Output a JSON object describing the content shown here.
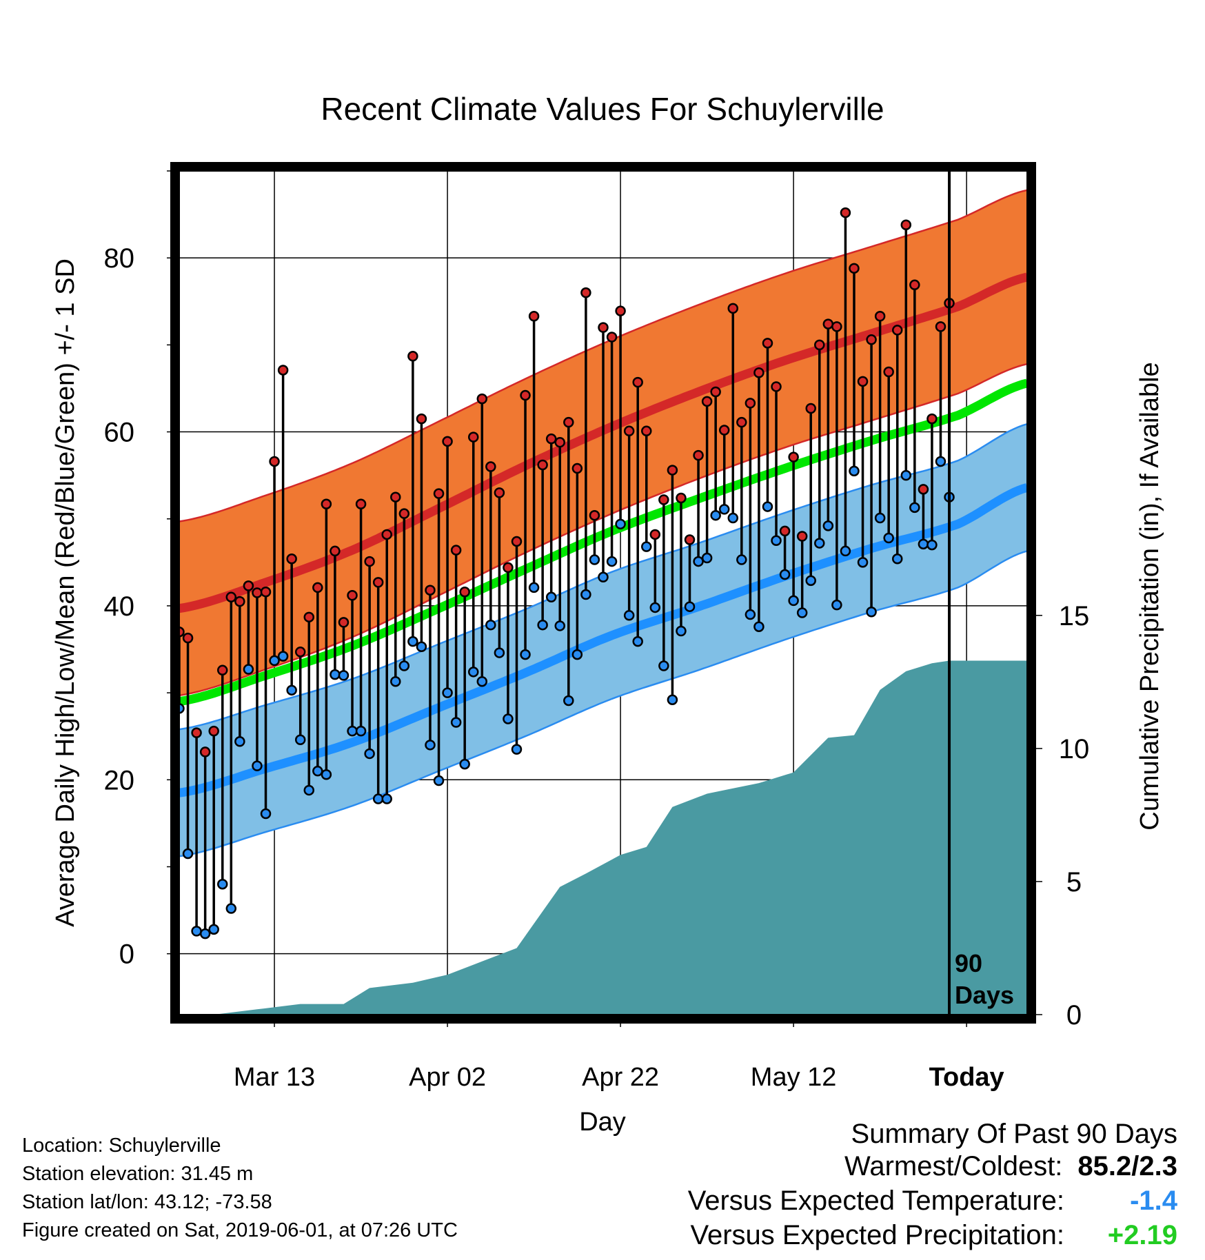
{
  "chart_data": {
    "type": "line",
    "title": "Recent Climate Values For Schuylerville",
    "xlabel": "Day",
    "ylabel": "Average Daily High/Low/Mean (Red/Blue/Green) +/- 1 SD",
    "y2label": "Cumulative Precipitation (in), If Available",
    "x_tick_labels": [
      "Mar 13",
      "Apr 02",
      "Apr 22",
      "May 12",
      "Today"
    ],
    "y_ticks": [
      0,
      20,
      40,
      60,
      80
    ],
    "y2_ticks": [
      0,
      5,
      10,
      15
    ],
    "ylim": [
      -7,
      90
    ],
    "y2lim": [
      0,
      31.7
    ],
    "grid": true,
    "today_marker_label": [
      "90",
      "Days"
    ],
    "colors": {
      "high_band": "#f07832",
      "high_band_edge": "#d42828",
      "high_mean": "#d42828",
      "low_band": "#80bfe6",
      "low_band_edge": "#2a8cf0",
      "low_mean": "#1e90ff",
      "mean": "#00e600",
      "precip": "#4a9aa2",
      "high_marker": "#d42828",
      "low_marker": "#2a8cf0"
    },
    "normals": {
      "days": [
        -89,
        -79,
        -69,
        -59,
        -49,
        -39,
        -29,
        -19,
        -9,
        1,
        9
      ],
      "normal_high": [
        39.7,
        42.7,
        46.4,
        51.2,
        56.1,
        60.6,
        64.6,
        68.2,
        71.3,
        74.4,
        77.8
      ],
      "normal_low": [
        18.5,
        21.3,
        24.3,
        28.3,
        32.3,
        36.6,
        39.9,
        43.4,
        46.6,
        49.4,
        53.6
      ],
      "normal_mean": [
        29.0,
        32.0,
        35.4,
        39.7,
        44.2,
        48.6,
        52.3,
        55.8,
        59.0,
        61.9,
        65.6
      ],
      "high_sd": 10.0,
      "low_sd": 7.3
    },
    "series": [
      {
        "name": "High",
        "days": [
          -89,
          -88,
          -87,
          -86,
          -85,
          -84,
          -83,
          -82,
          -81,
          -80,
          -79,
          -78,
          -77,
          -76,
          -75,
          -74,
          -73,
          -72,
          -71,
          -70,
          -69,
          -68,
          -67,
          -66,
          -65,
          -64,
          -63,
          -62,
          -61,
          -60,
          -59,
          -58,
          -57,
          -56,
          -55,
          -54,
          -53,
          -52,
          -51,
          -50,
          -49,
          -48,
          -47,
          -46,
          -45,
          -44,
          -43,
          -42,
          -41,
          -40,
          -39,
          -38,
          -37,
          -36,
          -35,
          -34,
          -33,
          -32,
          -31,
          -30,
          -29,
          -28,
          -27,
          -26,
          -25,
          -24,
          -23,
          -22,
          -21,
          -20,
          -19,
          -18,
          -17,
          -16,
          -15,
          -14,
          -13,
          -12,
          -11,
          -10,
          -9,
          -8,
          -7,
          -6,
          -5,
          -4,
          -3,
          -2,
          -1,
          0
        ],
        "values": [
          37.0,
          36.3,
          25.4,
          23.2,
          25.6,
          32.6,
          41.0,
          40.5,
          42.3,
          41.5,
          41.6,
          56.6,
          67.1,
          45.4,
          34.7,
          38.7,
          42.1,
          51.7,
          46.3,
          38.1,
          41.2,
          51.7,
          45.1,
          42.7,
          48.2,
          52.5,
          50.6,
          68.7,
          61.5,
          41.8,
          52.9,
          58.9,
          46.4,
          41.6,
          59.4,
          63.8,
          56.0,
          53.0,
          44.4,
          47.4,
          64.2,
          73.3,
          56.2,
          59.2,
          58.8,
          61.1,
          55.8,
          76.0,
          50.4,
          72.0,
          70.9,
          73.9,
          60.1,
          65.7,
          60.1,
          48.2,
          52.2,
          55.6,
          52.4,
          47.6,
          57.3,
          63.5,
          64.6,
          60.2,
          74.2,
          61.1,
          63.3,
          66.8,
          70.2,
          65.2,
          48.6,
          57.1,
          48.0,
          62.7,
          70.0,
          72.4,
          72.1,
          85.2,
          78.8,
          65.8,
          70.6,
          73.3,
          66.9,
          71.7,
          83.8,
          76.9,
          53.4,
          61.5,
          72.1,
          74.8
        ]
      },
      {
        "name": "Low",
        "days": [
          -89,
          -88,
          -87,
          -86,
          -85,
          -84,
          -83,
          -82,
          -81,
          -80,
          -79,
          -78,
          -77,
          -76,
          -75,
          -74,
          -73,
          -72,
          -71,
          -70,
          -69,
          -68,
          -67,
          -66,
          -65,
          -64,
          -63,
          -62,
          -61,
          -60,
          -59,
          -58,
          -57,
          -56,
          -55,
          -54,
          -53,
          -52,
          -51,
          -50,
          -49,
          -48,
          -47,
          -46,
          -45,
          -44,
          -43,
          -42,
          -41,
          -40,
          -39,
          -38,
          -37,
          -36,
          -35,
          -34,
          -33,
          -32,
          -31,
          -30,
          -29,
          -28,
          -27,
          -26,
          -25,
          -24,
          -23,
          -22,
          -21,
          -20,
          -19,
          -18,
          -17,
          -16,
          -15,
          -14,
          -13,
          -12,
          -11,
          -10,
          -9,
          -8,
          -7,
          -6,
          -5,
          -4,
          -3,
          -2,
          -1,
          0
        ],
        "values": [
          28.2,
          11.5,
          2.6,
          2.3,
          2.8,
          8.0,
          5.2,
          24.4,
          32.7,
          21.6,
          16.1,
          33.7,
          34.2,
          30.3,
          24.6,
          18.8,
          21.0,
          20.6,
          32.1,
          32.0,
          25.6,
          25.6,
          23.0,
          17.8,
          17.8,
          31.3,
          33.1,
          35.9,
          35.3,
          24.0,
          19.9,
          30.0,
          26.6,
          21.8,
          32.4,
          31.3,
          37.8,
          34.6,
          27.0,
          23.5,
          34.4,
          42.1,
          37.8,
          41.0,
          37.7,
          29.1,
          34.4,
          41.3,
          45.3,
          43.3,
          45.1,
          49.4,
          38.9,
          35.9,
          46.8,
          39.8,
          33.1,
          29.2,
          37.1,
          39.9,
          45.1,
          45.5,
          50.4,
          51.1,
          50.1,
          45.3,
          39.0,
          37.6,
          51.4,
          47.5,
          43.6,
          40.6,
          39.2,
          42.9,
          47.2,
          49.2,
          40.1,
          46.3,
          55.5,
          45.0,
          39.3,
          50.1,
          47.8,
          45.4,
          55.0,
          51.3,
          47.1,
          47.0,
          56.6,
          52.5
        ]
      }
    ],
    "precipitation": {
      "days": [
        -89,
        -85,
        -80,
        -75,
        -70,
        -67,
        -62,
        -58,
        -54,
        -50,
        -45,
        -42,
        -38,
        -35,
        -32,
        -28,
        -25,
        -22,
        -18,
        -14,
        -11,
        -8,
        -5,
        -2,
        0,
        9
      ],
      "values": [
        0.0,
        0.0,
        0.2,
        0.4,
        0.4,
        1.0,
        1.2,
        1.5,
        2.0,
        2.5,
        4.8,
        5.3,
        6.0,
        6.3,
        7.8,
        8.3,
        8.5,
        8.7,
        9.1,
        10.4,
        10.5,
        12.2,
        12.9,
        13.2,
        13.3,
        13.3
      ]
    }
  },
  "info": {
    "location": "Location: Schuylerville",
    "elevation": "Station elevation: 31.45 m",
    "latlon": "Station lat/lon: 43.12; -73.58",
    "created": "Figure created on Sat, 2019-06-01, at 07:26 UTC"
  },
  "summary": {
    "title": "Summary Of Past 90 Days",
    "rows": [
      {
        "label": "Warmest/Coldest:",
        "value": "85.2/2.3",
        "color": "#000000"
      },
      {
        "label": "Versus Expected Temperature:",
        "value": "-1.4",
        "color": "#2a8cf0"
      },
      {
        "label": "Versus Expected Precipitation:",
        "value": "+2.19",
        "color": "#22cc22"
      }
    ]
  }
}
